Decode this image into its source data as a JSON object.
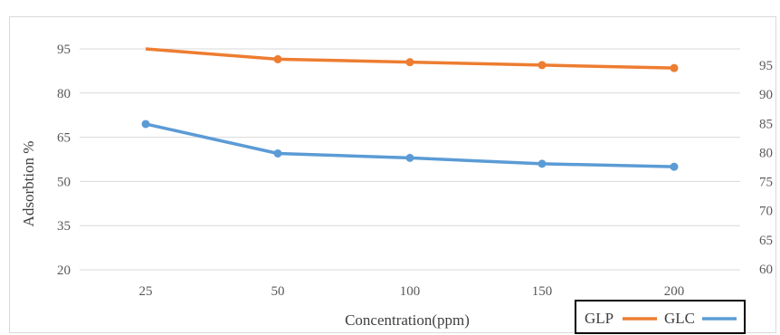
{
  "chart_data": {
    "type": "line",
    "xlabel": "Concentration(ppm)",
    "ylabel": "Adsorbtion %",
    "categories": [
      "25",
      "50",
      "100",
      "150",
      "200"
    ],
    "y_left": {
      "ticks": [
        20,
        35,
        50,
        65,
        80,
        95
      ],
      "range": [
        20,
        95
      ]
    },
    "y_right": {
      "ticks": [
        60,
        65,
        70,
        75,
        80,
        85,
        90,
        95
      ],
      "range": [
        60,
        95
      ]
    },
    "grid": true,
    "legend_position": "bottom-right",
    "series": [
      {
        "name": "GLP",
        "axis": "left",
        "color": "#ed7d31",
        "marker": false,
        "values": [
          95,
          91.5,
          90.5,
          89.5,
          88.5
        ]
      },
      {
        "name": "GLC",
        "axis": "left",
        "color": "#5b9bd5",
        "marker": true,
        "values": [
          69.5,
          59.5,
          58,
          56,
          55
        ]
      }
    ]
  }
}
